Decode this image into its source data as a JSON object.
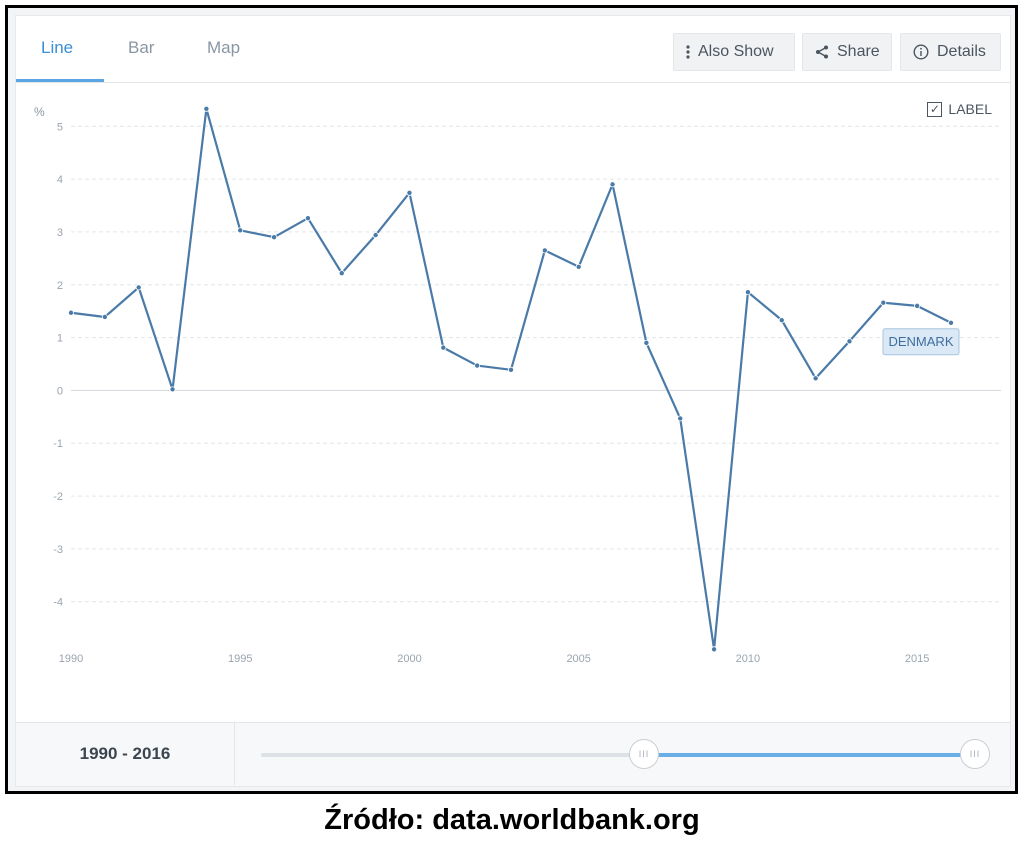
{
  "tabs": [
    {
      "label": "Line",
      "active": true
    },
    {
      "label": "Bar",
      "active": false
    },
    {
      "label": "Map",
      "active": false
    }
  ],
  "toolbar": {
    "also_show": {
      "label": "Also Show",
      "icon": "vertical-dots-icon"
    },
    "share": {
      "label": "Share",
      "icon": "share-icon"
    },
    "details": {
      "label": "Details",
      "icon": "info-icon"
    }
  },
  "label_toggle": {
    "label": "LABEL",
    "checked": true
  },
  "chart_data": {
    "type": "line",
    "ylabel": "%",
    "ylim": [
      -4.8,
      5.8
    ],
    "yticks": [
      5,
      4,
      3,
      2,
      1,
      0,
      -1,
      -2,
      -3,
      -4
    ],
    "xlim": [
      1990,
      2016
    ],
    "xticks": [
      1990,
      1995,
      2000,
      2005,
      2010,
      2015
    ],
    "grid": true,
    "series": [
      {
        "name": "DENMARK",
        "color": "#4a7aa8",
        "x": [
          1990,
          1991,
          1992,
          1993,
          1994,
          1995,
          1996,
          1997,
          1998,
          1999,
          2000,
          2001,
          2002,
          2003,
          2004,
          2005,
          2006,
          2007,
          2008,
          2009,
          2010,
          2011,
          2012,
          2013,
          2014,
          2015,
          2016
        ],
        "values": [
          1.47,
          1.39,
          1.95,
          0.02,
          5.33,
          3.03,
          2.9,
          3.26,
          2.22,
          2.94,
          3.74,
          0.81,
          0.47,
          0.39,
          2.65,
          2.34,
          3.9,
          0.9,
          -0.53,
          -4.9,
          1.86,
          1.33,
          0.23,
          0.93,
          1.66,
          1.6,
          1.28
        ]
      }
    ]
  },
  "footer": {
    "range_label": "1990 - 2016",
    "range_start": 1990,
    "range_end": 2016,
    "slider_min": 1960,
    "slider_max": 2016,
    "handle_glyph": "III"
  },
  "source": "Źródło: data.worldbank.org"
}
